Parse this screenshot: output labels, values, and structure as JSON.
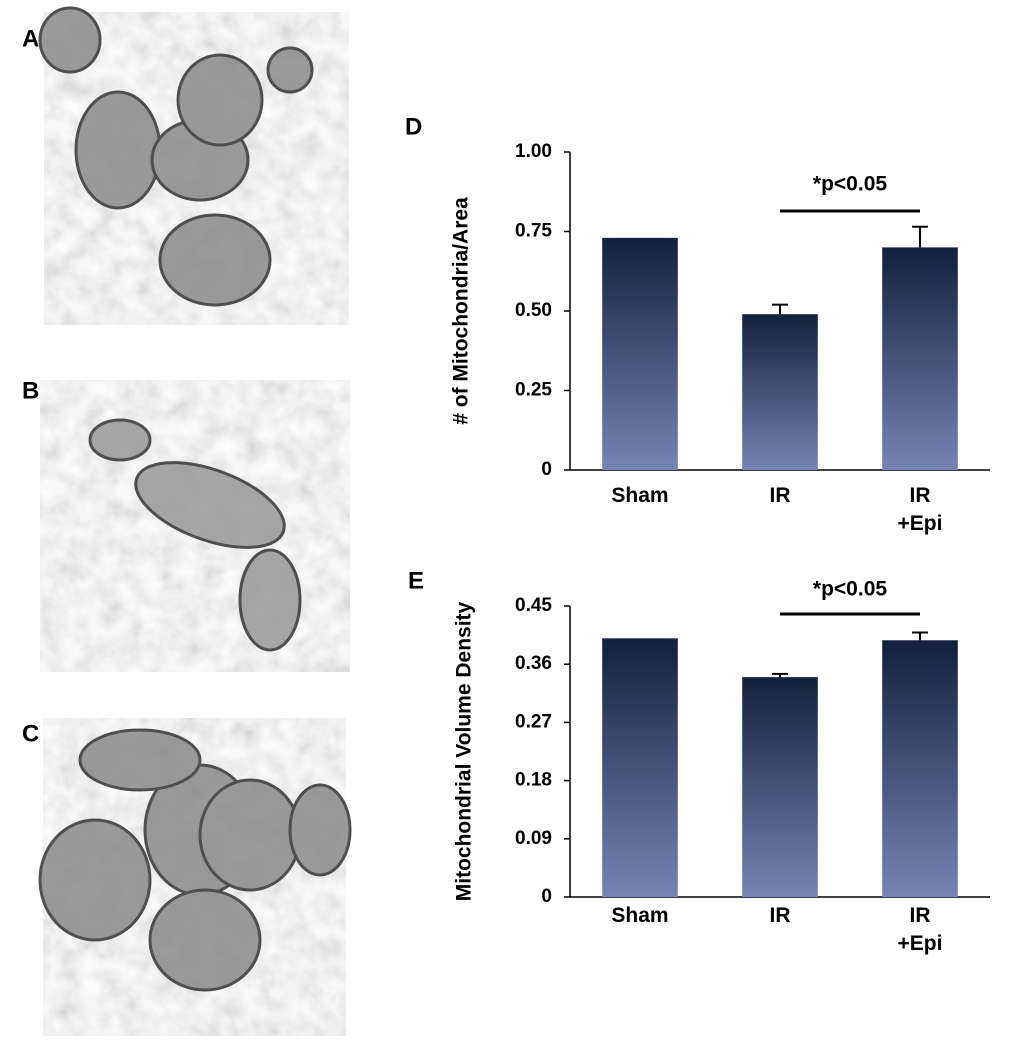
{
  "images": [
    {
      "label": "A"
    },
    {
      "label": "B"
    },
    {
      "label": "C"
    }
  ],
  "chart_data": [
    {
      "type": "bar",
      "label": "D",
      "ylabel": "# of Mitochondria/Area",
      "categories": [
        "Sham",
        "IR",
        "IR\n+Epi"
      ],
      "values": [
        0.73,
        0.49,
        0.7
      ],
      "errors": [
        null,
        0.03,
        0.065
      ],
      "gradient": [
        "#13213d",
        "#7584b4"
      ],
      "annotation": "*p<0.05",
      "ylim": [
        0,
        1
      ],
      "yticks": [
        0,
        0.25,
        {
          "value": 0.5,
          "label": "0.50"
        },
        0.75,
        {
          "value": 1,
          "label": "1.00"
        }
      ]
    },
    {
      "type": "bar",
      "label": "E",
      "ylabel": "Mitochondrial Volume Density",
      "categories": [
        "Sham",
        "IR",
        "IR\n+Epi"
      ],
      "values": [
        0.4,
        0.34,
        0.397
      ],
      "errors": [
        null,
        0.005,
        0.012
      ],
      "gradient": [
        "#13213d",
        "#7584b4"
      ],
      "annotation": "*p<0.05",
      "ylim": [
        0,
        0.45
      ],
      "yticks": [
        0,
        0.09,
        0.18,
        0.27,
        0.36,
        0.45
      ]
    }
  ]
}
